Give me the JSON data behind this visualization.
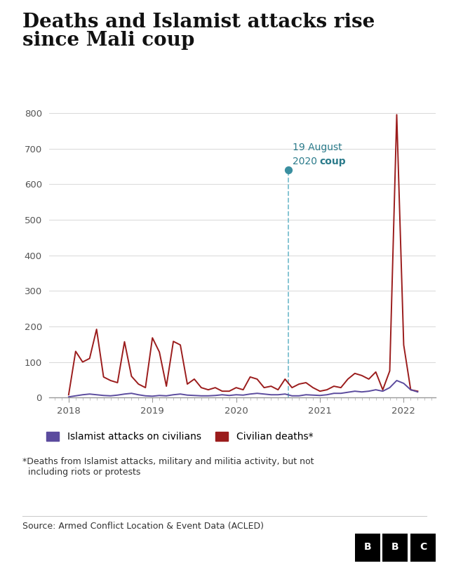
{
  "title_line1": "Deaths and Islamist attacks rise",
  "title_line2": "since Mali coup",
  "title_fontsize": 20,
  "bg_color": "#ffffff",
  "civilian_deaths_color": "#9b1c1c",
  "islamist_attacks_color": "#5b4b9e",
  "coup_line_color": "#7bbfcf",
  "coup_dot_color": "#3a8fa0",
  "annotation_color": "#2a7a8a",
  "ylim": [
    0,
    830
  ],
  "yticks": [
    0,
    100,
    200,
    300,
    400,
    500,
    600,
    700,
    800
  ],
  "xtick_positions": [
    2018,
    2019,
    2020,
    2021,
    2022
  ],
  "xtick_labels": [
    "2018",
    "2019",
    "2020",
    "2021",
    "2022"
  ],
  "xlim_start": 2017.77,
  "xlim_end": 2022.38,
  "coup_x": 2020.625,
  "source_text": "Source: Armed Conflict Location & Event Data (ACLED)",
  "footnote_text": "*Deaths from Islamist attacks, military and militia activity, but not\n  including riots or protests",
  "legend_islamist": "Islamist attacks on civilians",
  "legend_deaths": "Civilian deaths*",
  "x_numeric": [
    2018.0,
    2018.0833,
    2018.1667,
    2018.25,
    2018.3333,
    2018.4167,
    2018.5,
    2018.5833,
    2018.6667,
    2018.75,
    2018.8333,
    2018.9167,
    2019.0,
    2019.0833,
    2019.1667,
    2019.25,
    2019.3333,
    2019.4167,
    2019.5,
    2019.5833,
    2019.6667,
    2019.75,
    2019.8333,
    2019.9167,
    2020.0,
    2020.0833,
    2020.1667,
    2020.25,
    2020.3333,
    2020.4167,
    2020.5,
    2020.5833,
    2020.6667,
    2020.75,
    2020.8333,
    2020.9167,
    2021.0,
    2021.0833,
    2021.1667,
    2021.25,
    2021.3333,
    2021.4167,
    2021.5,
    2021.5833,
    2021.6667,
    2021.75,
    2021.8333,
    2021.9167,
    2022.0,
    2022.0833,
    2022.1667
  ],
  "civilian_deaths": [
    8,
    130,
    100,
    110,
    192,
    58,
    48,
    42,
    157,
    60,
    38,
    28,
    168,
    128,
    32,
    158,
    148,
    38,
    52,
    28,
    22,
    28,
    18,
    18,
    28,
    22,
    58,
    52,
    28,
    32,
    22,
    52,
    28,
    38,
    42,
    28,
    18,
    22,
    32,
    28,
    52,
    68,
    62,
    52,
    72,
    22,
    75,
    795,
    148,
    22,
    18
  ],
  "islamist_attacks": [
    2,
    5,
    8,
    10,
    8,
    6,
    5,
    7,
    10,
    12,
    8,
    5,
    4,
    6,
    5,
    8,
    10,
    7,
    6,
    5,
    5,
    6,
    8,
    6,
    8,
    7,
    10,
    12,
    10,
    8,
    8,
    10,
    5,
    5,
    8,
    7,
    6,
    8,
    12,
    12,
    15,
    18,
    16,
    18,
    22,
    18,
    28,
    48,
    40,
    22,
    16
  ]
}
